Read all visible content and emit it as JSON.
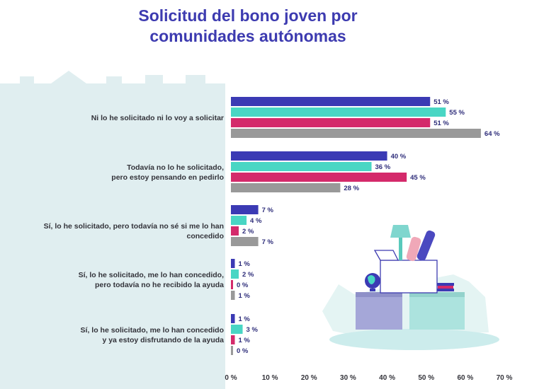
{
  "title_lines": [
    "Solicitud del bono joven por",
    "comunidades autónomas"
  ],
  "colors": {
    "series": [
      "#3b3ab4",
      "#49d6c4",
      "#d42a6b",
      "#999999"
    ],
    "title": "#3d3bb0",
    "background_shape": "#e0eef0"
  },
  "chart_data": {
    "type": "bar",
    "orientation": "horizontal",
    "title": "Solicitud del bono joven por comunidades autónomas",
    "categories": [
      "Ni lo he solicitado ni lo voy a solicitar",
      "Todavía no lo he solicitado, pero estoy pensando en pedirlo",
      "Sí, lo he solicitado, pero todavía no sé si me lo han concedido",
      "Sí, lo he solicitado, me lo han concedido, pero todavía no he recibido la ayuda",
      "Sí, lo he solicitado, me lo han concedido y ya estoy disfrutando de la ayuda"
    ],
    "category_lines": [
      [
        "Ni lo he solicitado ni lo voy a solicitar"
      ],
      [
        "Todavía no lo he solicitado,",
        "pero estoy pensando en pedirlo"
      ],
      [
        "Sí, lo he solicitado, pero todavía no sé si me lo han concedido"
      ],
      [
        "Sí, lo he solicitado, me lo han concedido,",
        "pero todavía no he recibido la ayuda"
      ],
      [
        "Sí, lo he solicitado, me lo han concedido",
        "y ya estoy disfrutando de la ayuda"
      ]
    ],
    "series": [
      {
        "values": [
          51,
          40,
          7,
          1,
          1
        ]
      },
      {
        "values": [
          55,
          36,
          4,
          2,
          3
        ]
      },
      {
        "values": [
          51,
          45,
          2,
          0,
          1
        ]
      },
      {
        "values": [
          64,
          28,
          7,
          1,
          0
        ]
      }
    ],
    "value_labels": [
      [
        "51 %",
        "40 %",
        "7 %",
        "1 %",
        "1 %"
      ],
      [
        "55 %",
        "36 %",
        "4 %",
        "2 %",
        "3 %"
      ],
      [
        "51 %",
        "45 %",
        "2 %",
        "0 %",
        "1 %"
      ],
      [
        "64 %",
        "28 %",
        "7 %",
        "1 %",
        "0 %"
      ]
    ],
    "xlim": [
      0,
      70
    ],
    "xticks": [
      0,
      10,
      20,
      30,
      40,
      50,
      60,
      70
    ],
    "xtick_labels": [
      "0 %",
      "10 %",
      "20 %",
      "30 %",
      "40 %",
      "50 %",
      "60 %",
      "70 %"
    ],
    "grid": false,
    "legend": "none"
  }
}
